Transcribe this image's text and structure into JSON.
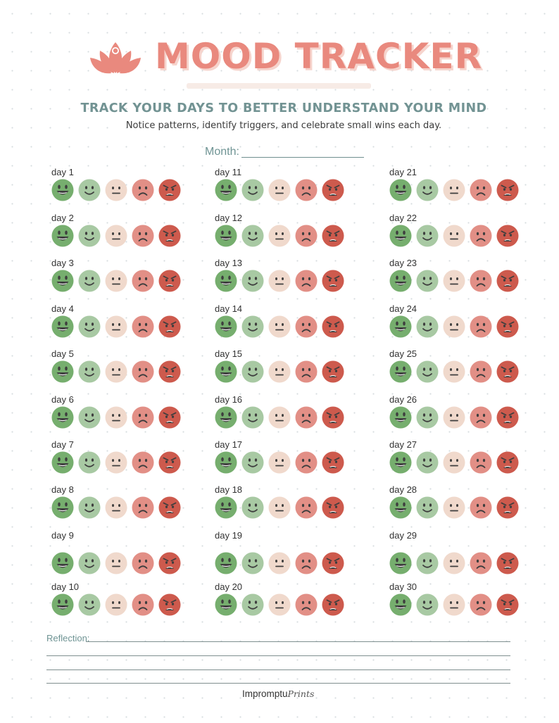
{
  "header": {
    "title": "MOOD TRACKER",
    "logo_icon": "lotus-icon",
    "subtitle": "TRACK YOUR DAYS TO BETTER UNDERSTAND YOUR MIND",
    "tagline": "Notice patterns, identify triggers, and celebrate small wins each day."
  },
  "month": {
    "label": "Month:",
    "value": ""
  },
  "mood_scale": [
    {
      "name": "very-happy-face-icon",
      "color": "#76ae6e"
    },
    {
      "name": "happy-face-icon",
      "color": "#a8c9a3"
    },
    {
      "name": "neutral-face-icon",
      "color": "#f0d9cc"
    },
    {
      "name": "sad-face-icon",
      "color": "#e28f86"
    },
    {
      "name": "angry-face-icon",
      "color": "#cd5a4d"
    }
  ],
  "days": [
    "day 1",
    "day 2",
    "day 3",
    "day 4",
    "day 5",
    "day 6",
    "day 7",
    "day 8",
    "day 9",
    "day 10",
    "day 11",
    "day 12",
    "day 13",
    "day 14",
    "day 15",
    "day 16",
    "day 17",
    "day 18",
    "day 19",
    "day 20",
    "day 21",
    "day 22",
    "day 23",
    "day 24",
    "day 25",
    "day 26",
    "day 27",
    "day 28",
    "day 29",
    "day 30"
  ],
  "reflection": {
    "label": "Reflection:",
    "value": ""
  },
  "footer": {
    "brand": "Impromptu",
    "brand_script": "Prints"
  },
  "colors": {
    "title": "#e9897e",
    "title_shadow": "#f6d4cd",
    "subtitle": "#729393",
    "label_teal": "#6f9494",
    "face_feature": "#3e3e3e"
  }
}
